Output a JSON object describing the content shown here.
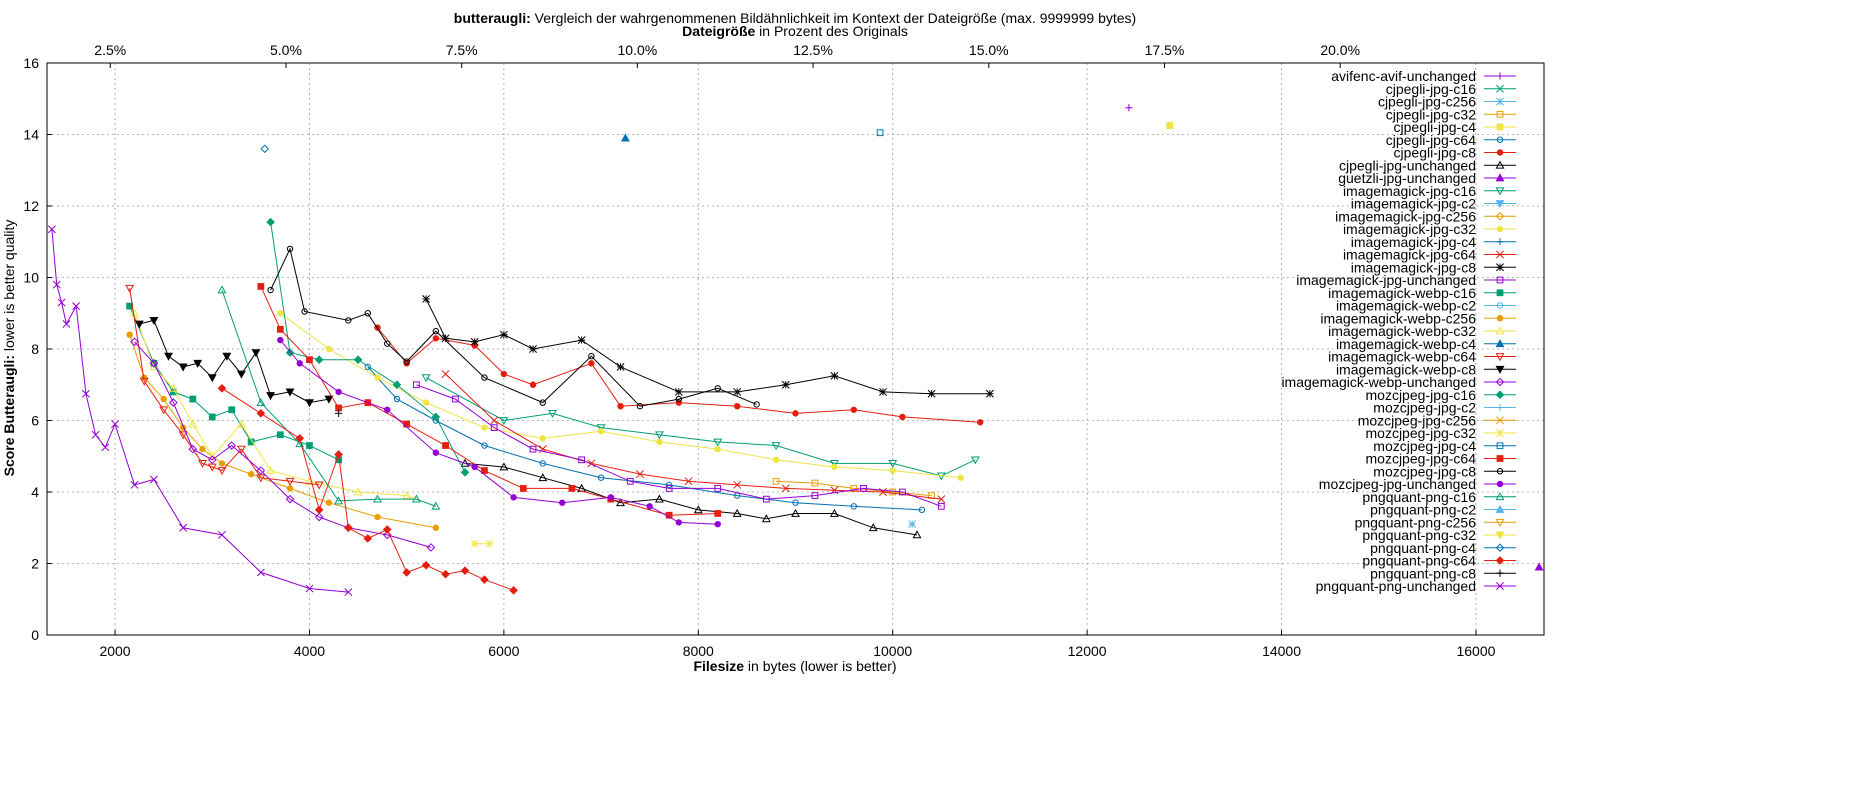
{
  "chart_data": {
    "type": "line",
    "title_bold": "butteraugli:",
    "title_rest": " Vergleich der wahrgenommenen Bildähnlichkeit im Kontext der Dateigröße (max. 9999999 bytes)",
    "x2label_bold": "Dateigröße",
    "x2label_rest": " in Prozent des Originals",
    "xlabel_bold": "Filesize",
    "xlabel_rest": " in bytes (lower is better)",
    "ylabel_bold": "Score Butteraugli:",
    "ylabel_rest": " lower is better quality",
    "xlim": [
      1300,
      16700
    ],
    "ylim": [
      0,
      16
    ],
    "x2lim": [
      1.6,
      22.9
    ],
    "xticks": [
      2000,
      4000,
      6000,
      8000,
      10000,
      12000,
      14000,
      16000
    ],
    "yticks": [
      0,
      2,
      4,
      6,
      8,
      10,
      12,
      14,
      16
    ],
    "x2ticks": [
      2.5,
      5.0,
      7.5,
      10.0,
      12.5,
      15.0,
      17.5,
      20.0
    ],
    "x2tick_suffix": "%",
    "grid": true,
    "legend_position": "right",
    "series": [
      {
        "name": "avifenc-avif-unchanged",
        "color": "#9400d3",
        "marker": "plus",
        "x": [
          12430
        ],
        "y": [
          14.75
        ]
      },
      {
        "name": "cjpegli-jpg-c16",
        "color": "#009e73",
        "marker": "x",
        "x": [],
        "y": []
      },
      {
        "name": "cjpegli-jpg-c256",
        "color": "#56b4e9",
        "marker": "star",
        "x": [
          10200
        ],
        "y": [
          3.1
        ]
      },
      {
        "name": "cjpegli-jpg-c32",
        "color": "#e69f00",
        "marker": "square-open",
        "x": [
          8800,
          9200,
          9600,
          10000,
          10400
        ],
        "y": [
          4.3,
          4.25,
          4.1,
          4.0,
          3.9
        ]
      },
      {
        "name": "cjpegli-jpg-c4",
        "color": "#f0e442",
        "marker": "square",
        "x": [
          12850
        ],
        "y": [
          14.25
        ]
      },
      {
        "name": "cjpegli-jpg-c64",
        "color": "#0072b2",
        "marker": "circle-open",
        "x": [
          4600,
          4900,
          5300,
          5800,
          6400,
          7000,
          7700,
          8400,
          9000,
          9600,
          10300
        ],
        "y": [
          7.5,
          6.6,
          6.0,
          5.3,
          4.8,
          4.4,
          4.2,
          3.9,
          3.7,
          3.6,
          3.5
        ]
      },
      {
        "name": "cjpegli-jpg-c8",
        "color": "#e51e10",
        "marker": "circle",
        "x": [
          4700,
          5000,
          5300,
          5700,
          6000,
          6300,
          6900,
          7200,
          7800,
          8400,
          9000,
          9600,
          10100,
          10900
        ],
        "y": [
          8.6,
          7.6,
          8.3,
          8.1,
          7.3,
          7.0,
          7.6,
          6.4,
          6.5,
          6.4,
          6.2,
          6.3,
          6.1,
          5.95
        ]
      },
      {
        "name": "cjpegli-jpg-unchanged",
        "color": "#000000",
        "marker": "triangle-open",
        "x": [
          5600,
          6000,
          6400,
          6800,
          7200,
          7600,
          8000,
          8400,
          8700,
          9000,
          9400,
          9800,
          10250
        ],
        "y": [
          4.8,
          4.7,
          4.4,
          4.1,
          3.7,
          3.8,
          3.5,
          3.4,
          3.25,
          3.4,
          3.4,
          3.0,
          2.8
        ]
      },
      {
        "name": "guetzli-jpg-unchanged",
        "color": "#9400d3",
        "marker": "triangle",
        "x": [
          16650
        ],
        "y": [
          1.9
        ]
      },
      {
        "name": "imagemagick-jpg-c16",
        "color": "#009e73",
        "marker": "triangle-down-open",
        "x": [
          5200,
          6000,
          6500,
          7000,
          7600,
          8200,
          8800,
          9400,
          10000,
          10500,
          10850
        ],
        "y": [
          7.2,
          6.0,
          6.2,
          5.8,
          5.6,
          5.4,
          5.3,
          4.8,
          4.8,
          4.45,
          4.9
        ]
      },
      {
        "name": "imagemagick-jpg-c2",
        "color": "#56b4e9",
        "marker": "triangle-down",
        "x": [],
        "y": []
      },
      {
        "name": "imagemagick-jpg-c256",
        "color": "#e69f00",
        "marker": "diamond-open",
        "x": [],
        "y": []
      },
      {
        "name": "imagemagick-jpg-c32",
        "color": "#f0e442",
        "marker": "circle",
        "x": [
          3700,
          4200,
          4700,
          5200,
          5800,
          6400,
          7000,
          7600,
          8200,
          8800,
          9400,
          10000,
          10700
        ],
        "y": [
          9.0,
          8.0,
          7.2,
          6.5,
          5.8,
          5.5,
          5.7,
          5.4,
          5.2,
          4.9,
          4.7,
          4.6,
          4.4
        ]
      },
      {
        "name": "imagemagick-jpg-c4",
        "color": "#0072b2",
        "marker": "plus",
        "x": [],
        "y": []
      },
      {
        "name": "imagemagick-jpg-c64",
        "color": "#e51e10",
        "marker": "x",
        "x": [
          5400,
          5900,
          6400,
          6900,
          7400,
          7900,
          8400,
          8900,
          9400,
          9900,
          10500
        ],
        "y": [
          7.3,
          6.0,
          5.2,
          4.8,
          4.5,
          4.3,
          4.2,
          4.1,
          4.05,
          4.0,
          3.8
        ]
      },
      {
        "name": "imagemagick-jpg-c8",
        "color": "#000000",
        "marker": "star",
        "x": [
          5200,
          5400,
          5700,
          6000,
          6300,
          6800,
          7200,
          7800,
          8400,
          8900,
          9400,
          9900,
          10400,
          11000
        ],
        "y": [
          9.4,
          8.3,
          8.2,
          8.4,
          8.0,
          8.25,
          7.5,
          6.8,
          6.8,
          7.0,
          7.25,
          6.8,
          6.75,
          6.75
        ]
      },
      {
        "name": "imagemagick-jpg-unchanged",
        "color": "#9400d3",
        "marker": "square-open",
        "x": [
          5100,
          5500,
          5900,
          6300,
          6800,
          7300,
          7700,
          8200,
          8700,
          9200,
          9700,
          10100,
          10500
        ],
        "y": [
          7.0,
          6.6,
          5.8,
          5.2,
          4.9,
          4.3,
          4.1,
          4.1,
          3.8,
          3.9,
          4.1,
          4.0,
          3.6
        ]
      },
      {
        "name": "imagemagick-webp-c16",
        "color": "#009e73",
        "marker": "square",
        "x": [
          2150,
          2400,
          2600,
          2800,
          3000,
          3200,
          3400,
          3700,
          4000,
          4300
        ],
        "y": [
          9.2,
          7.6,
          6.8,
          6.6,
          6.1,
          6.3,
          5.4,
          5.6,
          5.3,
          4.9
        ]
      },
      {
        "name": "imagemagick-webp-c2",
        "color": "#56b4e9",
        "marker": "circle-open",
        "x": [],
        "y": []
      },
      {
        "name": "imagemagick-webp-c256",
        "color": "#e69f00",
        "marker": "circle",
        "x": [
          2150,
          2300,
          2500,
          2700,
          2900,
          3100,
          3400,
          3800,
          4200,
          4700,
          5300
        ],
        "y": [
          8.4,
          7.2,
          6.6,
          5.8,
          5.2,
          4.8,
          4.5,
          4.1,
          3.7,
          3.3,
          3.0
        ]
      },
      {
        "name": "imagemagick-webp-c32",
        "color": "#f0e442",
        "marker": "triangle-open",
        "x": [
          2200,
          2400,
          2600,
          2800,
          3000,
          3300,
          3600,
          4000,
          4500,
          5000,
          5300
        ],
        "y": [
          9.0,
          7.5,
          6.9,
          5.9,
          5.0,
          5.9,
          4.6,
          4.3,
          4.0,
          3.9,
          3.6
        ]
      },
      {
        "name": "imagemagick-webp-c4",
        "color": "#0072b2",
        "marker": "triangle",
        "x": [
          7250
        ],
        "y": [
          13.9
        ]
      },
      {
        "name": "imagemagick-webp-c64",
        "color": "#e51e10",
        "marker": "triangle-down-open",
        "x": [
          2150,
          2300,
          2500,
          2700,
          2900,
          3000,
          3100,
          3300,
          3500,
          3800,
          4100
        ],
        "y": [
          9.7,
          7.1,
          6.3,
          5.6,
          4.8,
          4.7,
          4.6,
          5.2,
          4.4,
          4.3,
          4.2
        ]
      },
      {
        "name": "imagemagick-webp-c8",
        "color": "#000000",
        "marker": "triangle-down",
        "x": [
          2250,
          2400,
          2550,
          2700,
          2850,
          3000,
          3150,
          3300,
          3450,
          3600,
          3800,
          4000,
          4200
        ],
        "y": [
          8.7,
          8.8,
          7.8,
          7.5,
          7.6,
          7.2,
          7.8,
          7.3,
          7.9,
          6.7,
          6.8,
          6.5,
          6.6
        ]
      },
      {
        "name": "imagemagick-webp-unchanged",
        "color": "#9400d3",
        "marker": "diamond-open",
        "x": [
          2200,
          2400,
          2600,
          2800,
          3000,
          3200,
          3500,
          3800,
          4100,
          4400,
          4800,
          5250
        ],
        "y": [
          8.2,
          7.6,
          6.5,
          5.2,
          4.9,
          5.3,
          4.6,
          3.8,
          3.3,
          3.0,
          2.8,
          2.45
        ]
      },
      {
        "name": "mozcjpeg-jpg-c16",
        "color": "#009e73",
        "marker": "diamond",
        "x": [
          3600,
          3800,
          4100,
          4500,
          4900,
          5300,
          5600
        ],
        "y": [
          11.55,
          7.9,
          7.7,
          7.7,
          7.0,
          6.1,
          4.55
        ]
      },
      {
        "name": "mozcjpeg-jpg-c2",
        "color": "#56b4e9",
        "marker": "plus",
        "x": [],
        "y": []
      },
      {
        "name": "mozcjpeg-jpg-c256",
        "color": "#e69f00",
        "marker": "x",
        "x": [],
        "y": []
      },
      {
        "name": "mozcjpeg-jpg-c32",
        "color": "#f0e442",
        "marker": "star",
        "x": [
          5700,
          5850
        ],
        "y": [
          2.55,
          2.55
        ]
      },
      {
        "name": "mozcjpeg-jpg-c4",
        "color": "#0072b2",
        "marker": "square-open",
        "x": [
          9870
        ],
        "y": [
          14.05
        ]
      },
      {
        "name": "mozcjpeg-jpg-c64",
        "color": "#e51e10",
        "marker": "square",
        "x": [
          3500,
          3700,
          4000,
          4300,
          4600,
          5000,
          5400,
          5800,
          6200,
          6700,
          7100,
          7700,
          8200
        ],
        "y": [
          9.75,
          8.55,
          7.7,
          6.35,
          6.5,
          5.9,
          5.3,
          4.6,
          4.1,
          4.1,
          3.8,
          3.35,
          3.4
        ]
      },
      {
        "name": "mozcjpeg-jpg-c8",
        "color": "#000000",
        "marker": "circle-open",
        "x": [
          3600,
          3800,
          3950,
          4400,
          4600,
          4800,
          5000,
          5300,
          5800,
          6400,
          6900,
          7400,
          7800,
          8200,
          8600
        ],
        "y": [
          9.65,
          10.8,
          9.05,
          8.8,
          9.0,
          8.15,
          7.65,
          8.5,
          7.2,
          6.5,
          7.8,
          6.4,
          6.6,
          6.9,
          6.45
        ]
      },
      {
        "name": "mozcjpeg-jpg-unchanged",
        "color": "#9400d3",
        "marker": "circle",
        "x": [
          3700,
          3900,
          4300,
          4800,
          5300,
          5700,
          6100,
          6600,
          7100,
          7500,
          7800,
          8200
        ],
        "y": [
          8.25,
          7.6,
          6.8,
          6.3,
          5.1,
          4.7,
          3.85,
          3.7,
          3.85,
          3.6,
          3.15,
          3.1
        ]
      },
      {
        "name": "pngquant-png-c16",
        "color": "#009e73",
        "marker": "triangle-open",
        "x": [
          3100,
          3500,
          3900,
          4300,
          4700,
          5100,
          5300
        ],
        "y": [
          9.65,
          6.5,
          5.35,
          3.75,
          3.8,
          3.8,
          3.6
        ]
      },
      {
        "name": "pngquant-png-c2",
        "color": "#56b4e9",
        "marker": "triangle",
        "x": [],
        "y": []
      },
      {
        "name": "pngquant-png-c256",
        "color": "#e69f00",
        "marker": "triangle-down-open",
        "x": [],
        "y": []
      },
      {
        "name": "pngquant-png-c32",
        "color": "#f0e442",
        "marker": "triangle-down",
        "x": [],
        "y": []
      },
      {
        "name": "pngquant-png-c4",
        "color": "#0072b2",
        "marker": "diamond-open",
        "x": [
          3540
        ],
        "y": [
          13.6
        ]
      },
      {
        "name": "pngquant-png-c64",
        "color": "#e51e10",
        "marker": "diamond",
        "x": [
          3100,
          3500,
          3900,
          4100,
          4300,
          4400,
          4600,
          4800,
          5000,
          5200,
          5400,
          5600,
          5800,
          6100
        ],
        "y": [
          6.9,
          6.2,
          5.5,
          3.5,
          5.05,
          3.0,
          2.7,
          2.95,
          1.75,
          1.95,
          1.7,
          1.8,
          1.55,
          1.25
        ]
      },
      {
        "name": "pngquant-png-c8",
        "color": "#000000",
        "marker": "plus",
        "x": [
          4300
        ],
        "y": [
          6.2
        ]
      },
      {
        "name": "pngquant-png-unchanged",
        "color": "#9400d3",
        "marker": "x",
        "x": [
          1350,
          1400,
          1450,
          1500,
          1600,
          1700,
          1800,
          1900,
          2000,
          2200,
          2400,
          2700,
          3100,
          3500,
          4000,
          4400
        ],
        "y": [
          11.35,
          9.8,
          9.3,
          8.7,
          9.2,
          6.75,
          5.6,
          5.25,
          5.9,
          4.2,
          4.35,
          3.0,
          2.8,
          1.75,
          1.3,
          1.2
        ]
      }
    ]
  }
}
